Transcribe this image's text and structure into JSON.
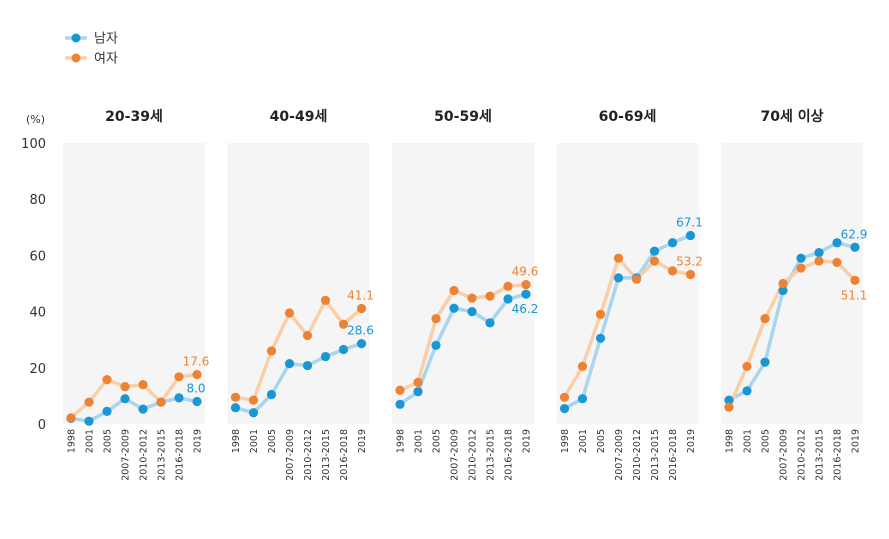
{
  "chart_data": {
    "type": "line",
    "y_unit": "(%)",
    "ylim": [
      0,
      100
    ],
    "y_ticks": [
      "0",
      "20",
      "40",
      "60",
      "80",
      "100"
    ],
    "x_categories": [
      "1998",
      "2001",
      "2005",
      "2007-2009",
      "2010-2012",
      "2013-2015",
      "2016-2018",
      "2019"
    ],
    "legend": [
      {
        "name": "남자",
        "color": "#1a96d4",
        "line_color": "#a9d5ee"
      },
      {
        "name": "여자",
        "color": "#ec8234",
        "line_color": "#f9cfa9"
      }
    ],
    "legend_position": "top-left",
    "background_color": "#f5f5f5",
    "panels": [
      {
        "title": "20-39세",
        "series": [
          {
            "name": "남자",
            "values": [
              2.0,
              1.0,
              4.5,
              9.0,
              5.3,
              7.8,
              9.3,
              8.0
            ]
          },
          {
            "name": "여자",
            "values": [
              2.2,
              7.8,
              15.8,
              13.3,
              14.0,
              7.8,
              16.8,
              17.6
            ]
          }
        ],
        "labels": [
          {
            "series": "여자",
            "text": "17.6",
            "pos": "above"
          },
          {
            "series": "남자",
            "text": "8.0",
            "pos": "above"
          }
        ]
      },
      {
        "title": "40-49세",
        "series": [
          {
            "name": "남자",
            "values": [
              5.8,
              4.0,
              10.5,
              21.5,
              20.8,
              24.0,
              26.5,
              28.6
            ]
          },
          {
            "name": "여자",
            "values": [
              9.5,
              8.5,
              26.0,
              39.5,
              31.5,
              44.0,
              35.5,
              41.1
            ]
          }
        ],
        "labels": [
          {
            "series": "여자",
            "text": "41.1",
            "pos": "above"
          },
          {
            "series": "남자",
            "text": "28.6",
            "pos": "above"
          }
        ]
      },
      {
        "title": "50-59세",
        "series": [
          {
            "name": "남자",
            "values": [
              7.0,
              11.5,
              28.0,
              41.2,
              40.0,
              36.0,
              44.5,
              46.2
            ]
          },
          {
            "name": "여자",
            "values": [
              12.0,
              14.8,
              37.5,
              47.5,
              44.8,
              45.5,
              49.0,
              49.6
            ]
          }
        ],
        "labels": [
          {
            "series": "여자",
            "text": "49.6",
            "pos": "above"
          },
          {
            "series": "남자",
            "text": "46.2",
            "pos": "below"
          }
        ]
      },
      {
        "title": "60-69세",
        "series": [
          {
            "name": "남자",
            "values": [
              5.5,
              9.0,
              30.5,
              52.0,
              52.0,
              61.5,
              64.5,
              67.1
            ]
          },
          {
            "name": "여자",
            "values": [
              9.5,
              20.5,
              39.0,
              59.0,
              51.5,
              58.0,
              54.5,
              53.2
            ]
          }
        ],
        "labels": [
          {
            "series": "남자",
            "text": "67.1",
            "pos": "above"
          },
          {
            "series": "여자",
            "text": "53.2",
            "pos": "above"
          }
        ]
      },
      {
        "title": "70세 이상",
        "series": [
          {
            "name": "남자",
            "values": [
              8.5,
              11.8,
              22.0,
              47.5,
              59.0,
              61.0,
              64.5,
              62.9
            ]
          },
          {
            "name": "여자",
            "values": [
              6.0,
              20.5,
              37.5,
              50.0,
              55.5,
              58.0,
              57.5,
              51.1
            ]
          }
        ],
        "labels": [
          {
            "series": "남자",
            "text": "62.9",
            "pos": "above"
          },
          {
            "series": "여자",
            "text": "51.1",
            "pos": "below"
          }
        ]
      }
    ]
  }
}
